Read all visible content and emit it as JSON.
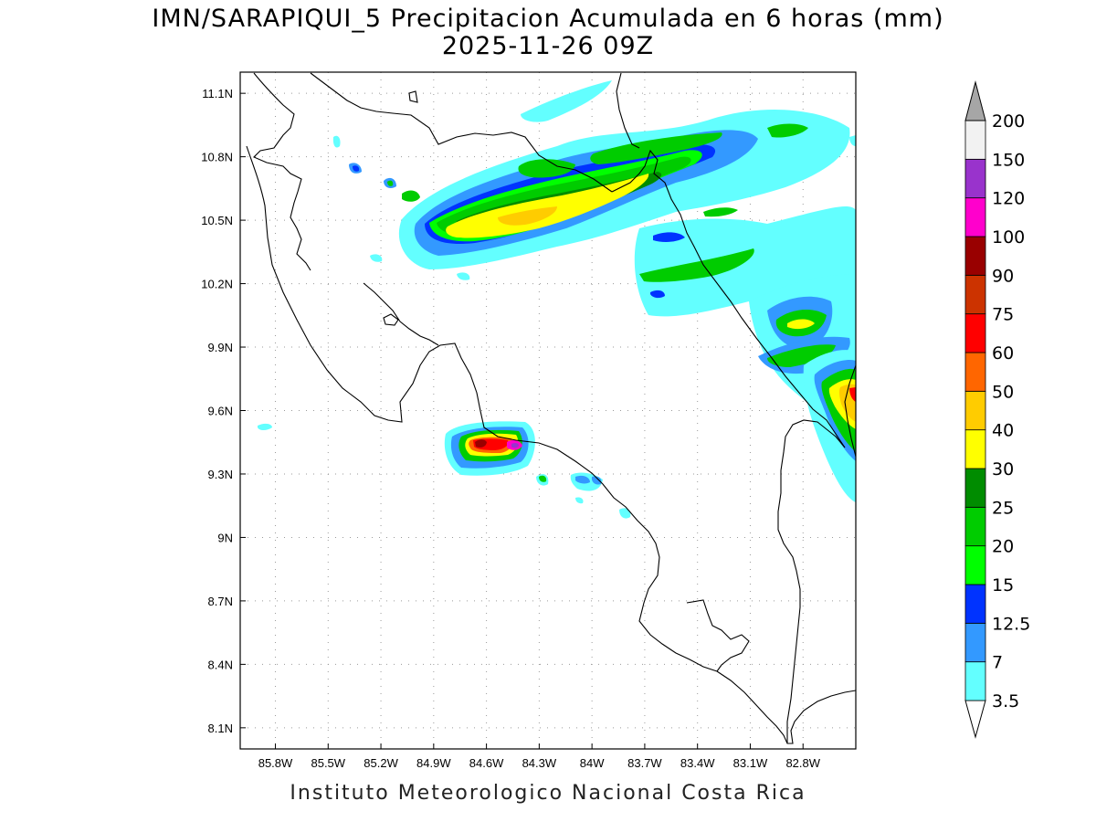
{
  "title": "IMN/SARAPIQUI_5 Precipitacion Acumulada en 6 horas (mm)",
  "subtitle": "2025-11-26 09Z",
  "footer": "Instituto Meteorologico Nacional Costa Rica",
  "map": {
    "lon_range": [
      -86.0,
      -82.5
    ],
    "lat_range": [
      8.0,
      11.2
    ],
    "xtick_values": [
      -85.8,
      -85.5,
      -85.2,
      -84.9,
      -84.6,
      -84.3,
      -84.0,
      -83.7,
      -83.4,
      -83.1,
      -82.8
    ],
    "xtick_labels": [
      "85.8W",
      "85.5W",
      "85.2W",
      "84.9W",
      "84.6W",
      "84.3W",
      "84W",
      "83.7W",
      "83.4W",
      "83.1W",
      "82.8W"
    ],
    "ytick_values": [
      8.1,
      8.4,
      8.7,
      9.0,
      9.3,
      9.6,
      9.9,
      10.2,
      10.5,
      10.8,
      11.1
    ],
    "ytick_labels": [
      "8.1N",
      "8.4N",
      "8.7N",
      "9N",
      "9.3N",
      "9.6N",
      "9.9N",
      "10.2N",
      "10.5N",
      "10.8N",
      "11.1N"
    ],
    "grid": true
  },
  "colorbar": {
    "levels": [
      "3.5",
      "7",
      "12.5",
      "15",
      "20",
      "25",
      "30",
      "40",
      "50",
      "60",
      "75",
      "90",
      "100",
      "120",
      "150",
      "200"
    ],
    "colors": [
      "#63ffff",
      "#3399ff",
      "#0033ff",
      "#00ff00",
      "#00cc00",
      "#008c00",
      "#ffff00",
      "#ffcc00",
      "#ff6600",
      "#ff0000",
      "#cc3300",
      "#990000",
      "#ff00cc",
      "#9933cc",
      "#f2f2f2",
      "#a6a6a6"
    ]
  }
}
